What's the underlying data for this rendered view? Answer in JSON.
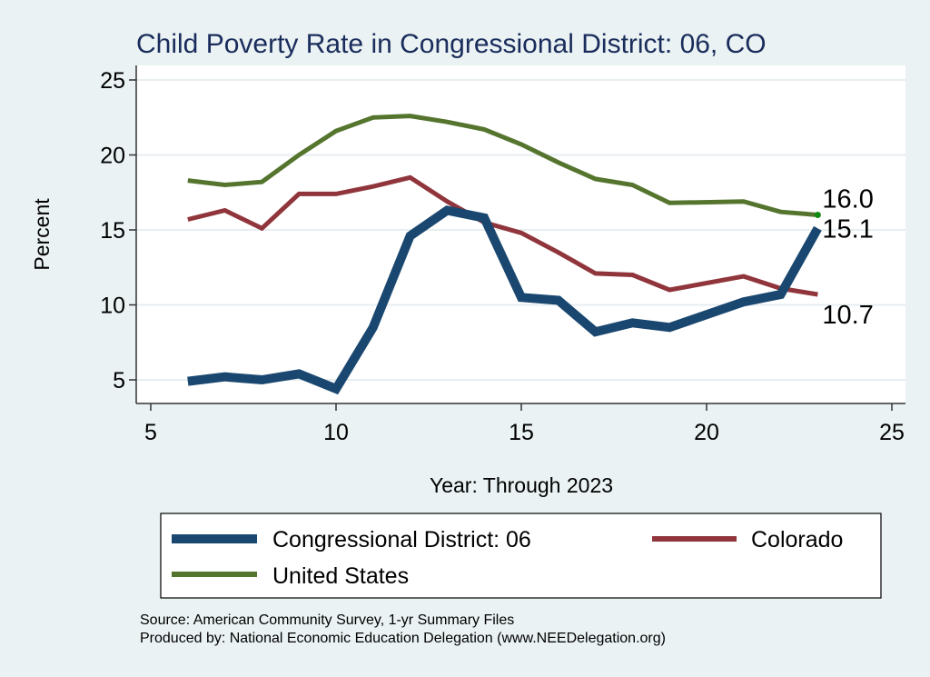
{
  "chart_data": {
    "type": "line",
    "title": "Child Poverty Rate in Congressional District:  06, CO",
    "xlabel": "Year: Through 2023",
    "ylabel": "Percent",
    "xlim": [
      4.6,
      25.4
    ],
    "ylim": [
      3.4,
      26.0
    ],
    "xticks": [
      5,
      10,
      15,
      20,
      25
    ],
    "yticks": [
      5,
      10,
      15,
      20,
      25
    ],
    "grid": "horizontal",
    "series": [
      {
        "name": "Congressional District:  06",
        "color": "#1a476f",
        "weight": "thick",
        "x": [
          6,
          7,
          8,
          9,
          10,
          11,
          12,
          13,
          14,
          15,
          16,
          17,
          18,
          19,
          21,
          22,
          23
        ],
        "values": [
          4.9,
          5.2,
          5.0,
          5.4,
          4.4,
          8.5,
          14.6,
          16.3,
          15.8,
          10.5,
          10.3,
          8.2,
          8.8,
          8.5,
          10.2,
          10.7,
          15.1
        ],
        "end_label": "15.1"
      },
      {
        "name": "Colorado",
        "color": "#90353b",
        "weight": "medium",
        "x": [
          6,
          7,
          8,
          9,
          10,
          11,
          12,
          13,
          14,
          15,
          16,
          17,
          18,
          19,
          21,
          22,
          23
        ],
        "values": [
          15.7,
          16.3,
          15.1,
          17.4,
          17.4,
          17.9,
          18.5,
          16.9,
          15.5,
          14.8,
          13.5,
          12.1,
          12.0,
          11.0,
          11.9,
          11.1,
          10.7
        ],
        "end_label": "10.7"
      },
      {
        "name": "United States",
        "color": "#55752f",
        "weight": "medium",
        "x": [
          6,
          7,
          8,
          9,
          10,
          11,
          12,
          13,
          14,
          15,
          16,
          17,
          18,
          19,
          21,
          22,
          23
        ],
        "values": [
          18.3,
          18.0,
          18.2,
          20.0,
          21.6,
          22.5,
          22.6,
          22.2,
          21.7,
          20.7,
          19.5,
          18.4,
          18.0,
          16.8,
          16.9,
          16.2,
          16.0
        ],
        "end_label": "16.0"
      }
    ],
    "legend": {
      "placement": "bottom",
      "entries": [
        "Congressional District:  06",
        "Colorado",
        "United States"
      ]
    },
    "notes": [
      "Source: American Community Survey, 1-yr Summary Files",
      "Produced by: National Economic Education Delegation (www.NEEDelegation.org)"
    ]
  }
}
